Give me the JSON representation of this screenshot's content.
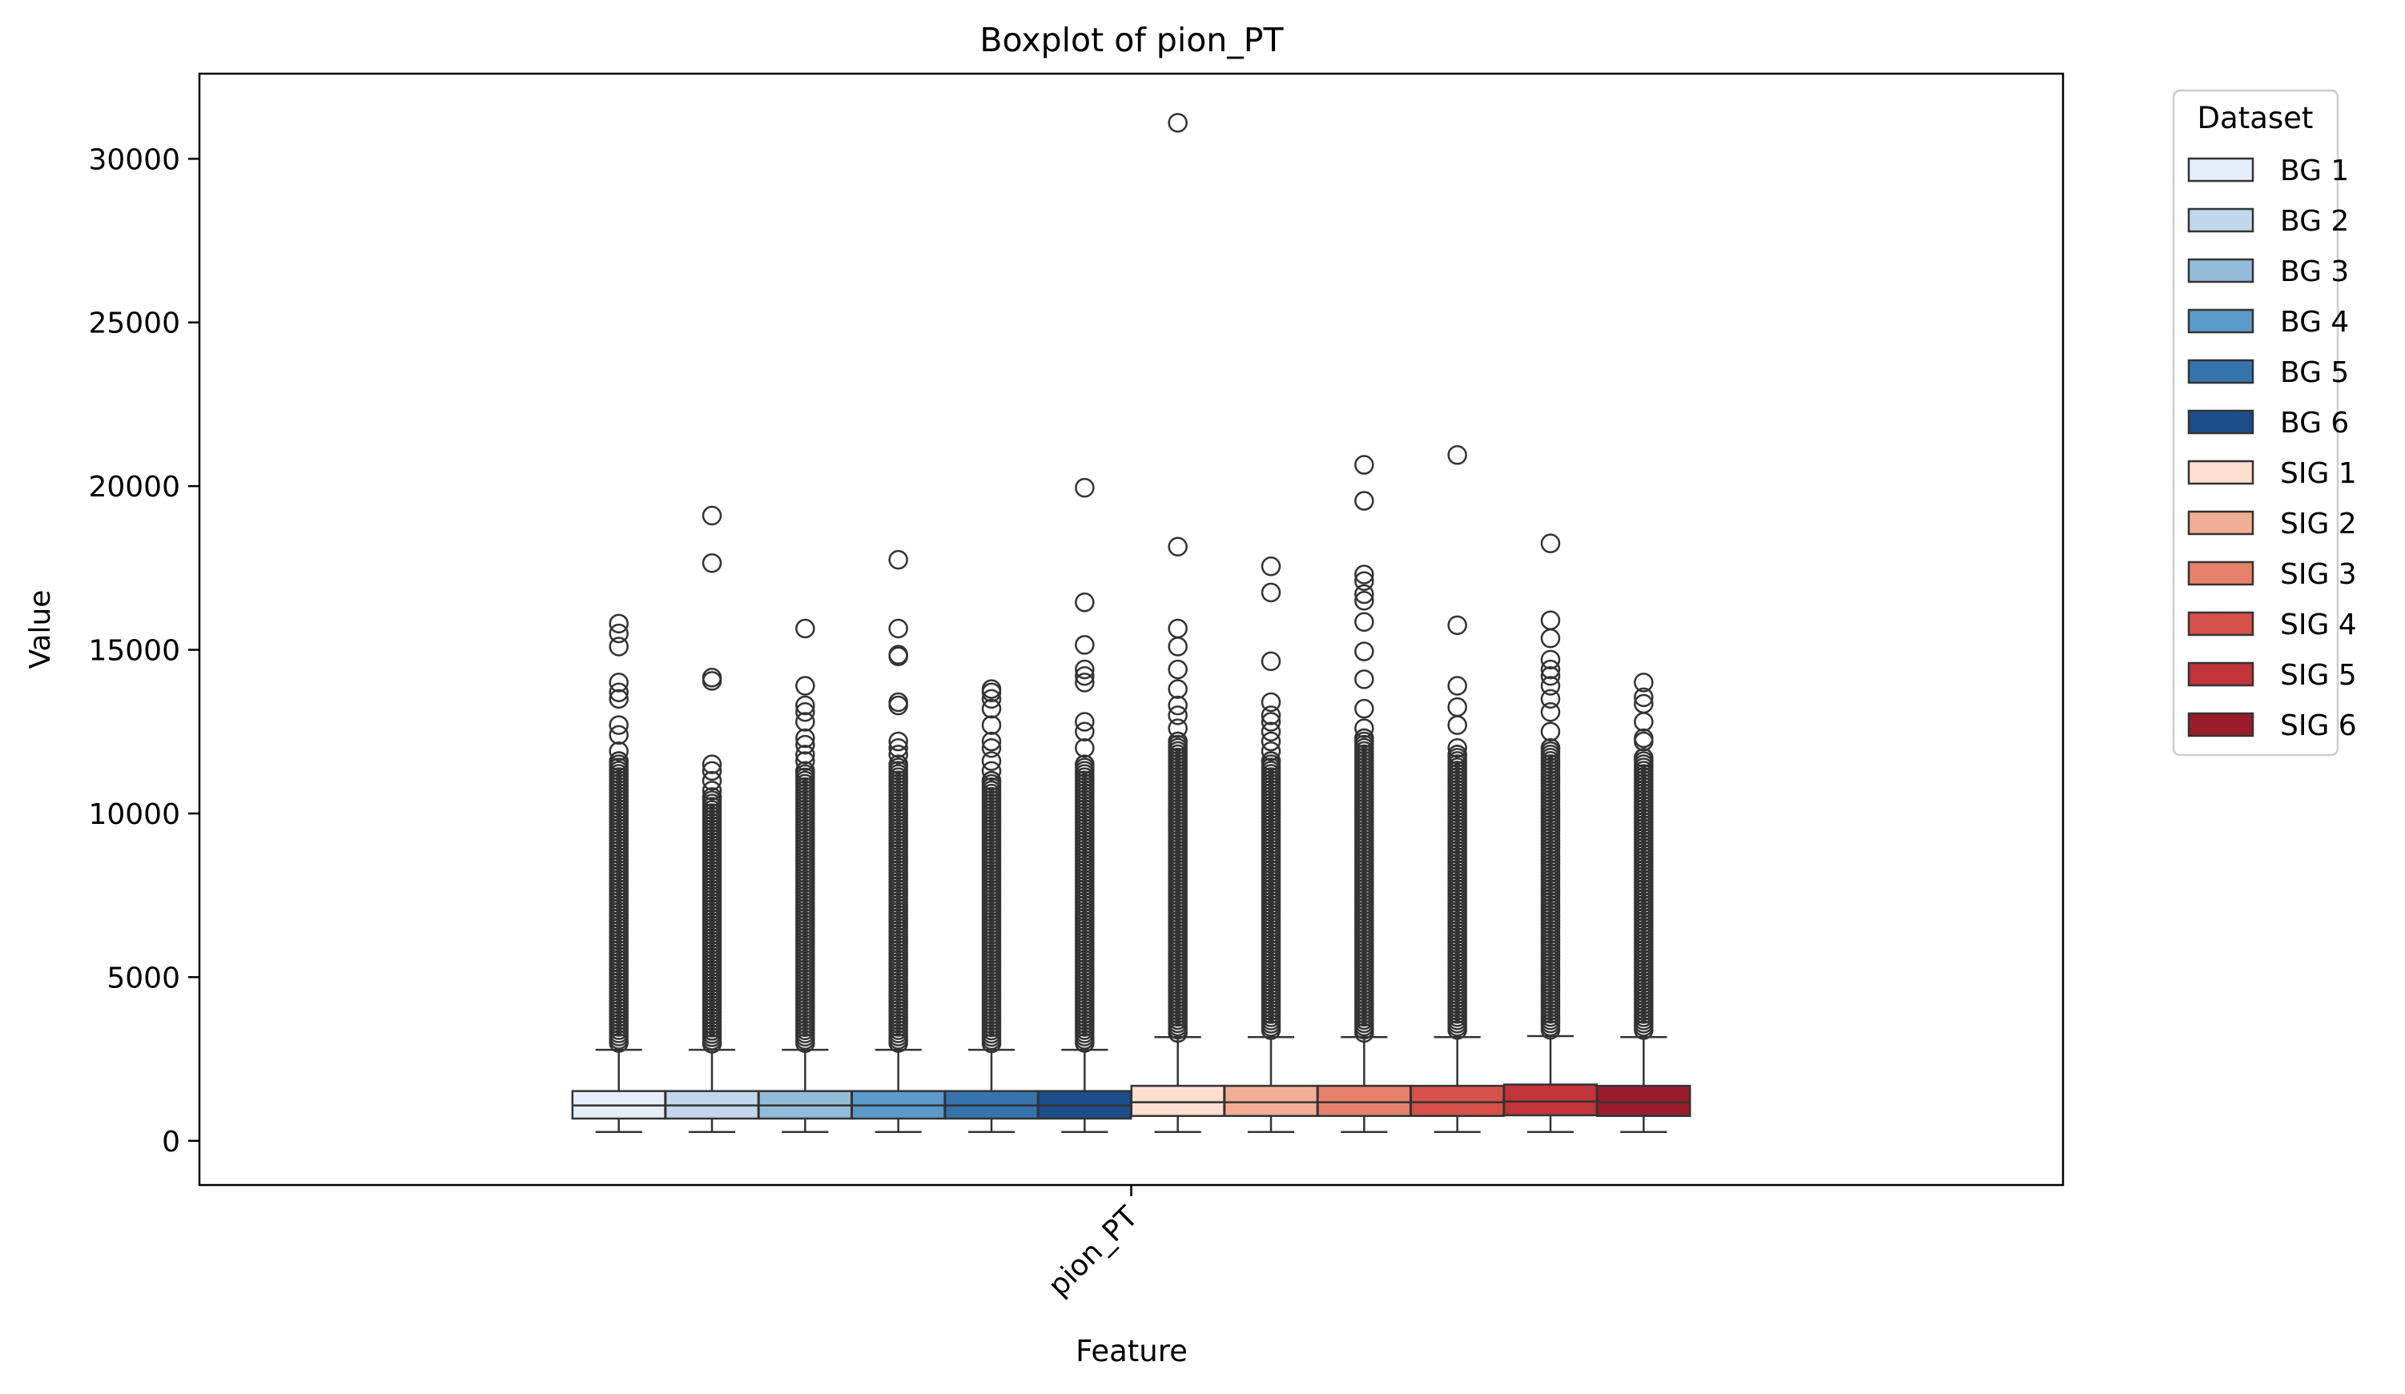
{
  "chart_data": {
    "type": "boxplot",
    "title": "Boxplot of pion_PT",
    "xlabel": "Feature",
    "ylabel": "Value",
    "categories": [
      "pion_PT"
    ],
    "ylim": [
      -1350,
      32600
    ],
    "yticks": [
      0,
      5000,
      10000,
      15000,
      20000,
      25000,
      30000
    ],
    "grid": false,
    "legend": {
      "title": "Dataset",
      "placement": "outside-top-right"
    },
    "series": [
      {
        "name": "BG 1",
        "color": "#e4eef9",
        "whisker_low": 270,
        "q1": 680,
        "median": 1080,
        "q3": 1520,
        "whisker_high": 2780,
        "outliers": [
          15800,
          15500,
          15100,
          14000,
          13700,
          13500,
          12700,
          12400,
          11900,
          11600
        ]
      },
      {
        "name": "BG 2",
        "color": "#c3d7ec",
        "whisker_low": 270,
        "q1": 680,
        "median": 1080,
        "q3": 1520,
        "whisker_high": 2780,
        "outliers": [
          19100,
          17650,
          14150,
          14050,
          11500,
          11300,
          11000,
          10700,
          10500
        ]
      },
      {
        "name": "BG 3",
        "color": "#93bcd9",
        "whisker_low": 270,
        "q1": 680,
        "median": 1080,
        "q3": 1520,
        "whisker_high": 2780,
        "outliers": [
          15650,
          13900,
          13300,
          13100,
          12800,
          12300,
          12100,
          11800,
          11600,
          11300
        ]
      },
      {
        "name": "BG 4",
        "color": "#5a9bcb",
        "whisker_low": 270,
        "q1": 680,
        "median": 1080,
        "q3": 1520,
        "whisker_high": 2780,
        "outliers": [
          17750,
          15650,
          14850,
          14800,
          13400,
          13300,
          12200,
          12000,
          11800,
          11500
        ]
      },
      {
        "name": "BG 5",
        "color": "#3573ad",
        "whisker_low": 270,
        "q1": 680,
        "median": 1080,
        "q3": 1520,
        "whisker_high": 2780,
        "outliers": [
          13800,
          13700,
          13500,
          13200,
          12700,
          12200,
          12000,
          11600,
          11300,
          11000
        ]
      },
      {
        "name": "BG 6",
        "color": "#1c4e8b",
        "whisker_low": 270,
        "q1": 680,
        "median": 1080,
        "q3": 1520,
        "whisker_high": 2780,
        "outliers": [
          19950,
          16450,
          15150,
          14400,
          14200,
          14000,
          12800,
          12500,
          12000,
          11500
        ]
      },
      {
        "name": "SIG 1",
        "color": "#fcdfcf",
        "whisker_low": 270,
        "q1": 760,
        "median": 1180,
        "q3": 1680,
        "whisker_high": 3170,
        "outliers": [
          31100,
          18150,
          15650,
          15100,
          14400,
          13800,
          13300,
          13000,
          12600,
          12200
        ]
      },
      {
        "name": "SIG 2",
        "color": "#f2ae95",
        "whisker_low": 270,
        "q1": 760,
        "median": 1180,
        "q3": 1680,
        "whisker_high": 3170,
        "outliers": [
          17550,
          16750,
          14650,
          13400,
          13000,
          12800,
          12500,
          12200,
          11900,
          11600
        ]
      },
      {
        "name": "SIG 3",
        "color": "#e7826a",
        "whisker_low": 270,
        "q1": 760,
        "median": 1180,
        "q3": 1680,
        "whisker_high": 3170,
        "outliers": [
          20650,
          19550,
          17300,
          17100,
          16700,
          16500,
          15850,
          14950,
          14100,
          13200,
          12600,
          12300
        ]
      },
      {
        "name": "SIG 4",
        "color": "#d8504a",
        "whisker_low": 270,
        "q1": 760,
        "median": 1180,
        "q3": 1680,
        "whisker_high": 3170,
        "outliers": [
          20950,
          15750,
          13900,
          13250,
          12700,
          12000,
          11800
        ]
      },
      {
        "name": "SIG 5",
        "color": "#c0343a",
        "whisker_low": 270,
        "q1": 780,
        "median": 1200,
        "q3": 1720,
        "whisker_high": 3200,
        "outliers": [
          18250,
          15900,
          15350,
          14700,
          14400,
          14200,
          13900,
          13500,
          13100,
          12500,
          12000
        ]
      },
      {
        "name": "SIG 6",
        "color": "#9a1b2a",
        "whisker_low": 270,
        "q1": 760,
        "median": 1180,
        "q3": 1680,
        "whisker_high": 3170,
        "outliers": [
          14000,
          13550,
          13350,
          12800,
          12300,
          12200,
          11700
        ]
      }
    ]
  }
}
